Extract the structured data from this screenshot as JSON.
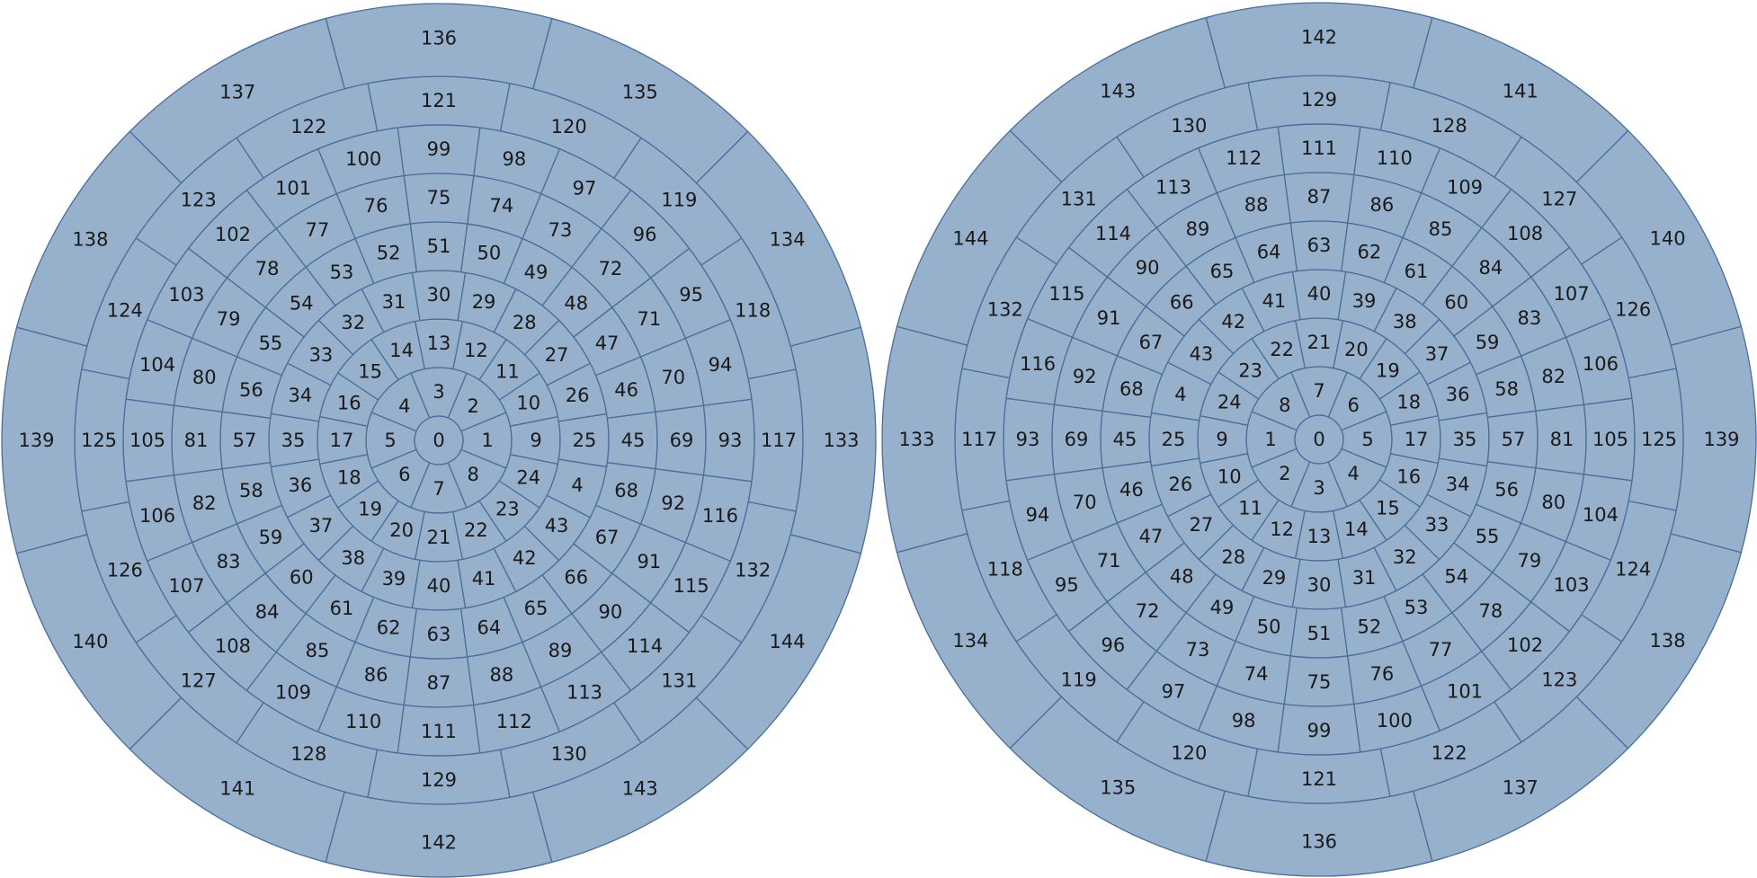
{
  "discs": [
    {
      "rings": [
        [
          0
        ],
        [
          1,
          2,
          3,
          4,
          5,
          6,
          7,
          8
        ],
        [
          9,
          10,
          11,
          12,
          13,
          14,
          15,
          16,
          17,
          18,
          19,
          20,
          21,
          22,
          23,
          24
        ],
        [
          25,
          26,
          27,
          28,
          29,
          30,
          31,
          32,
          33,
          34,
          35,
          36,
          37,
          38,
          39,
          40,
          41,
          42,
          43,
          4
        ],
        [
          45,
          46,
          47,
          48,
          49,
          50,
          51,
          52,
          53,
          54,
          55,
          56,
          57,
          58,
          59,
          60,
          61,
          62,
          63,
          64,
          65,
          66,
          67,
          68
        ],
        [
          69,
          70,
          71,
          72,
          73,
          74,
          75,
          76,
          77,
          78,
          79,
          80,
          81,
          82,
          83,
          84,
          85,
          86,
          87,
          88,
          89,
          90,
          91,
          92
        ],
        [
          93,
          94,
          95,
          96,
          97,
          98,
          99,
          100,
          101,
          102,
          103,
          104,
          105,
          106,
          107,
          108,
          109,
          110,
          111,
          112,
          113,
          114,
          115,
          116
        ],
        [
          117,
          118,
          119,
          120,
          121,
          122,
          123,
          124,
          125,
          126,
          127,
          128,
          129,
          130,
          131,
          132
        ],
        [
          133,
          134,
          135,
          136,
          137,
          138,
          139,
          140,
          141,
          142,
          143,
          144
        ]
      ]
    },
    {
      "rings": [
        [
          0
        ],
        [
          1,
          2,
          3,
          4,
          5,
          6,
          7,
          8
        ],
        [
          9,
          10,
          11,
          12,
          13,
          14,
          15,
          16,
          17,
          18,
          19,
          20,
          21,
          22,
          23,
          24
        ],
        [
          25,
          26,
          27,
          28,
          29,
          30,
          31,
          32,
          33,
          34,
          35,
          36,
          37,
          38,
          39,
          40,
          41,
          42,
          43,
          4
        ],
        [
          45,
          46,
          47,
          48,
          49,
          50,
          51,
          52,
          53,
          54,
          55,
          56,
          57,
          58,
          59,
          60,
          61,
          62,
          63,
          64,
          65,
          66,
          67,
          68
        ],
        [
          69,
          70,
          71,
          72,
          73,
          74,
          75,
          76,
          77,
          78,
          79,
          80,
          81,
          82,
          83,
          84,
          85,
          86,
          87,
          88,
          89,
          90,
          91,
          92
        ],
        [
          93,
          94,
          95,
          96,
          97,
          98,
          99,
          100,
          101,
          102,
          103,
          104,
          105,
          106,
          107,
          108,
          109,
          110,
          111,
          112,
          113,
          114,
          115,
          116
        ],
        [
          117,
          118,
          119,
          120,
          121,
          122,
          123,
          124,
          125,
          126,
          127,
          128,
          129,
          130,
          131,
          132
        ],
        [
          133,
          134,
          135,
          136,
          137,
          138,
          139,
          140,
          141,
          142,
          143,
          144
        ]
      ]
    }
  ]
}
